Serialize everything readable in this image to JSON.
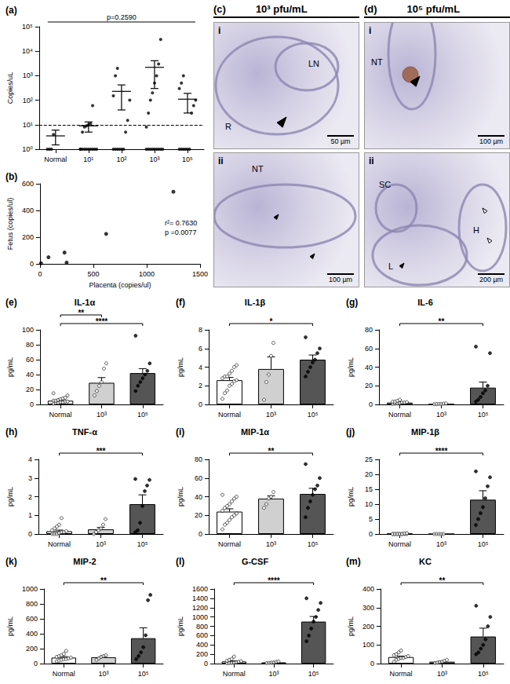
{
  "chart_data": [
    {
      "panel": "(a)",
      "type": "scatter",
      "categories": [
        "Normal",
        "10¹",
        "10²",
        "10³",
        "10⁵"
      ],
      "points": [
        [
          1,
          1,
          1,
          4
        ],
        [
          1,
          1,
          1,
          1,
          1,
          1,
          1,
          1,
          1,
          1,
          5,
          8,
          9,
          10,
          11,
          60
        ],
        [
          1,
          1,
          1,
          1,
          1,
          1,
          5,
          15,
          100,
          150,
          1000,
          2000
        ],
        [
          1,
          1,
          1,
          1,
          1,
          1,
          1,
          1,
          1,
          8,
          30,
          100,
          200,
          500,
          1000,
          3000,
          30000
        ],
        [
          1,
          1,
          1,
          1,
          1,
          1,
          30,
          60,
          100,
          300,
          500,
          1000
        ]
      ],
      "mean": [
        3.5,
        9,
        230,
        2200,
        110
      ],
      "error_bars": [
        [
          1.5,
          6
        ],
        [
          5,
          13
        ],
        [
          40,
          420
        ],
        [
          300,
          4100
        ],
        [
          30,
          190
        ]
      ],
      "threshold": 10,
      "annotation": "p=0.2590",
      "y_label": "Copies/uL",
      "log": "y",
      "ylim": [
        1,
        100000
      ],
      "yticks": [
        {
          "value": 1,
          "label": "10⁰"
        },
        {
          "value": 10,
          "label": "10¹"
        },
        {
          "value": 100,
          "label": "10²"
        },
        {
          "value": 1000,
          "label": "10³"
        },
        {
          "value": 10000,
          "label": "10⁴"
        },
        {
          "value": 100000,
          "label": "10⁵"
        }
      ],
      "grid": false,
      "color": "#000000"
    },
    {
      "panel": "(b)",
      "type": "scatter",
      "x": [
        10,
        80,
        230,
        250,
        620,
        1250
      ],
      "values": [
        5,
        50,
        85,
        10,
        225,
        540
      ],
      "x_label": "Placenta (copies/ul)",
      "y_label": "Fetus (copies/ul)",
      "xlim": [
        0,
        1500
      ],
      "xticks": [
        0,
        500,
        1000,
        1500
      ],
      "ylim": [
        0,
        600
      ],
      "yticks": [
        0,
        200,
        400,
        600
      ],
      "annotations": [
        "r²= 0.7630",
        "p =0.0077"
      ],
      "grid": false,
      "color": "#000000"
    },
    {
      "panel": "(e)",
      "type": "bar",
      "title": "IL-1α",
      "categories": [
        "Normal",
        "10³",
        "10⁵"
      ],
      "values": [
        5,
        29,
        42
      ],
      "sem": [
        1.5,
        7,
        6
      ],
      "points": [
        [
          1,
          2,
          2,
          3,
          3,
          4,
          4,
          5,
          5,
          6,
          7,
          8,
          9,
          12,
          15
        ],
        [
          12,
          18,
          25,
          30,
          48,
          55
        ],
        [
          18,
          25,
          30,
          35,
          40,
          45,
          55,
          92
        ]
      ],
      "colors": [
        "#ffffff",
        "#d0d0d0",
        "#555555"
      ],
      "y_label": "pg/mL",
      "ylim": [
        0,
        100
      ],
      "yticks": [
        0,
        20,
        40,
        60,
        80,
        100
      ],
      "significance": [
        [
          "Normal",
          "10³",
          "**"
        ],
        [
          "Normal",
          "10⁵",
          "****"
        ]
      ],
      "grid": false
    },
    {
      "panel": "(f)",
      "type": "bar",
      "title": "IL-1β",
      "categories": [
        "Normal",
        "10³",
        "10⁵"
      ],
      "values": [
        2.6,
        3.8,
        4.8
      ],
      "sem": [
        0.3,
        1.3,
        0.5
      ],
      "points": [
        [
          0.6,
          1.2,
          1.5,
          2,
          2.2,
          2.5,
          2.6,
          2.8,
          3,
          3,
          3.3,
          3.6,
          4,
          4.2
        ],
        [
          0.5,
          2.4,
          3.2,
          5.2,
          6.6
        ],
        [
          3,
          3.5,
          4,
          4.5,
          4.8,
          5.5,
          6,
          7.2
        ]
      ],
      "colors": [
        "#ffffff",
        "#d0d0d0",
        "#555555"
      ],
      "y_label": "pg/mL",
      "ylim": [
        0,
        8
      ],
      "yticks": [
        0,
        2,
        4,
        6,
        8
      ],
      "significance": [
        [
          "Normal",
          "10⁵",
          "*"
        ]
      ],
      "grid": false
    },
    {
      "panel": "(g)",
      "type": "bar",
      "title": "IL-6",
      "categories": [
        "Normal",
        "10³",
        "10⁵"
      ],
      "values": [
        2,
        0.5,
        18
      ],
      "sem": [
        0.5,
        0.2,
        6
      ],
      "points": [
        [
          0.5,
          1,
          1,
          1.5,
          2,
          2,
          2.5,
          3,
          3,
          4,
          5
        ],
        [
          0.2,
          0.3,
          0.5,
          0.5,
          0.8,
          1
        ],
        [
          3,
          5,
          8,
          12,
          15,
          20,
          55,
          62
        ]
      ],
      "colors": [
        "#ffffff",
        "#d0d0d0",
        "#555555"
      ],
      "y_label": "pg/mL",
      "ylim": [
        0,
        80
      ],
      "yticks": [
        0,
        20,
        40,
        60,
        80
      ],
      "significance": [
        [
          "Normal",
          "10⁵",
          "**"
        ]
      ],
      "grid": false
    },
    {
      "panel": "(h)",
      "type": "bar",
      "title": "TNF-α",
      "categories": [
        "Normal",
        "10³",
        "10⁵"
      ],
      "values": [
        0.15,
        0.25,
        1.6
      ],
      "sem": [
        0.06,
        0.1,
        0.5
      ],
      "points": [
        [
          0,
          0,
          0,
          0.05,
          0.1,
          0.1,
          0.15,
          0.2,
          0.3,
          0.4,
          0.5,
          0.85
        ],
        [
          0,
          0.1,
          0.2,
          0.3,
          0.5,
          0.8
        ],
        [
          0.1,
          0.2,
          0.6,
          1.5,
          2.3,
          2.6,
          2.9,
          2.95
        ]
      ],
      "colors": [
        "#ffffff",
        "#d0d0d0",
        "#555555"
      ],
      "y_label": "pg/mL",
      "ylim": [
        0,
        4
      ],
      "yticks": [
        0,
        1,
        2,
        3,
        4
      ],
      "significance": [
        [
          "Normal",
          "10⁵",
          "***"
        ]
      ],
      "grid": false
    },
    {
      "panel": "(i)",
      "type": "bar",
      "title": "MIP-1α",
      "categories": [
        "Normal",
        "10³",
        "10⁵"
      ],
      "values": [
        24,
        38,
        43
      ],
      "sem": [
        3,
        3,
        6
      ],
      "points": [
        [
          5,
          10,
          12,
          15,
          18,
          20,
          22,
          25,
          28,
          30,
          32,
          35,
          38,
          40,
          42
        ],
        [
          28,
          32,
          38,
          40,
          45
        ],
        [
          18,
          28,
          35,
          42,
          48,
          52,
          60,
          75
        ]
      ],
      "colors": [
        "#ffffff",
        "#d0d0d0",
        "#555555"
      ],
      "y_label": "pg/mL",
      "ylim": [
        0,
        80
      ],
      "yticks": [
        0,
        20,
        40,
        60,
        80
      ],
      "significance": [
        [
          "Normal",
          "10⁵",
          "**"
        ]
      ],
      "grid": false
    },
    {
      "panel": "(j)",
      "type": "bar",
      "title": "MIP-1β",
      "categories": [
        "Normal",
        "10³",
        "10⁵"
      ],
      "values": [
        0.1,
        0,
        11.5
      ],
      "sem": [
        0.05,
        0,
        3
      ],
      "points": [
        [
          0,
          0,
          0,
          0,
          0,
          0,
          0,
          0,
          0,
          0,
          0,
          0,
          0.2,
          0.3
        ],
        [
          0,
          0,
          0,
          0,
          0
        ],
        [
          3,
          5,
          7,
          9,
          12,
          16,
          19,
          21
        ]
      ],
      "colors": [
        "#ffffff",
        "#d0d0d0",
        "#555555"
      ],
      "y_label": "pg/mL",
      "ylim": [
        0,
        25
      ],
      "yticks": [
        0,
        5,
        10,
        15,
        20,
        25
      ],
      "significance": [
        [
          "Normal",
          "10⁵",
          "****"
        ]
      ],
      "grid": false
    },
    {
      "panel": "(k)",
      "type": "bar",
      "title": "MIP-2",
      "categories": [
        "Normal",
        "10³",
        "10⁵"
      ],
      "values": [
        80,
        85,
        340
      ],
      "sem": [
        15,
        15,
        140
      ],
      "points": [
        [
          30,
          40,
          50,
          60,
          60,
          70,
          80,
          90,
          100,
          110,
          130,
          170
        ],
        [
          50,
          70,
          90,
          100,
          110
        ],
        [
          60,
          100,
          150,
          220,
          380,
          850,
          920
        ]
      ],
      "colors": [
        "#ffffff",
        "#d0d0d0",
        "#555555"
      ],
      "y_label": "pg/mL",
      "ylim": [
        0,
        1000
      ],
      "yticks": [
        0,
        200,
        400,
        600,
        800,
        1000
      ],
      "significance": [
        [
          "Normal",
          "10⁵",
          "**"
        ]
      ],
      "grid": false
    },
    {
      "panel": "(l)",
      "type": "bar",
      "title": "G-CSF",
      "categories": [
        "Normal",
        "10³",
        "10⁵"
      ],
      "values": [
        45,
        25,
        900
      ],
      "sem": [
        12,
        8,
        110
      ],
      "points": [
        [
          5,
          10,
          15,
          20,
          30,
          40,
          50,
          60,
          80,
          100,
          150
        ],
        [
          10,
          15,
          20,
          25,
          35,
          45
        ],
        [
          480,
          600,
          750,
          900,
          1000,
          1150,
          1300,
          1400
        ]
      ],
      "colors": [
        "#ffffff",
        "#d0d0d0",
        "#555555"
      ],
      "y_label": "pg/mL",
      "ylim": [
        0,
        1600
      ],
      "yticks": [
        0,
        200,
        400,
        600,
        800,
        1000,
        1200,
        1400,
        1600
      ],
      "significance": [
        [
          "Normal",
          "10⁵",
          "****"
        ]
      ],
      "grid": false
    },
    {
      "panel": "(m)",
      "type": "bar",
      "title": "KC",
      "categories": [
        "Normal",
        "10³",
        "10⁵"
      ],
      "values": [
        35,
        10,
        145
      ],
      "sem": [
        5,
        3,
        45
      ],
      "points": [
        [
          10,
          20,
          25,
          30,
          30,
          35,
          40,
          45,
          50,
          60,
          70
        ],
        [
          3,
          5,
          8,
          10,
          15,
          20
        ],
        [
          50,
          60,
          80,
          100,
          130,
          200,
          250,
          310
        ]
      ],
      "colors": [
        "#ffffff",
        "#d0d0d0",
        "#555555"
      ],
      "y_label": "pg/mL",
      "ylim": [
        0,
        400
      ],
      "yticks": [
        0,
        100,
        200,
        300,
        400
      ],
      "significance": [
        [
          "Normal",
          "10⁵",
          "**"
        ]
      ],
      "grid": false
    }
  ],
  "images": [
    {
      "panel": "(c)",
      "header": "10³ pfu/mL",
      "views": [
        {
          "numeral": "i",
          "labels": [
            "LN",
            "R"
          ],
          "scale": "50 µm"
        },
        {
          "numeral": "ii",
          "labels": [
            "NT"
          ],
          "scale": "100 µm"
        }
      ]
    },
    {
      "panel": "(d)",
      "header": "10⁵ pfu/mL",
      "views": [
        {
          "numeral": "i",
          "labels": [
            "NT"
          ],
          "scale": "100 µm"
        },
        {
          "numeral": "ii",
          "labels": [
            "SC",
            "H",
            "L"
          ],
          "scale": "200 µm"
        }
      ]
    }
  ]
}
